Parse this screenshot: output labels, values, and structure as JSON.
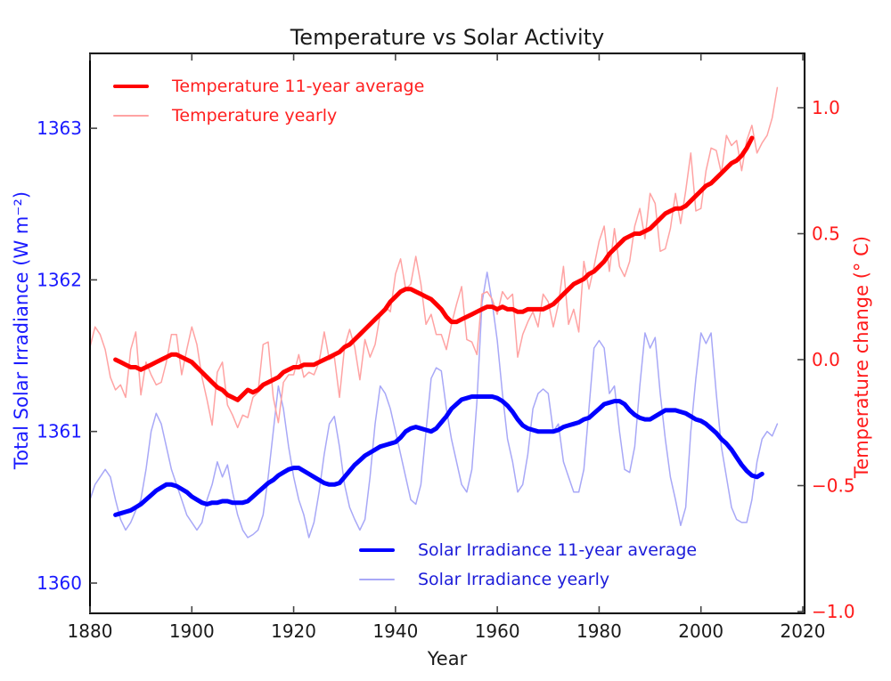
{
  "chart_data": {
    "type": "line",
    "title": "Temperature vs Solar Activity",
    "xlabel": "Year",
    "ylabel_left": "Total Solar Irradiance (W m⁻²)",
    "ylabel_right": "Temperature change (° C)",
    "x_range": [
      1880,
      2020
    ],
    "x_ticks": [
      1880,
      1900,
      1920,
      1940,
      1960,
      1980,
      2000,
      2020
    ],
    "y_axis_left": {
      "range": [
        1359.8,
        1363.5
      ],
      "ticks": [
        1360,
        1361,
        1362,
        1363
      ],
      "tick_labels": [
        "1360",
        "1361",
        "1362",
        "1363"
      ]
    },
    "y_axis_right": {
      "range": [
        -1.01,
        1.22
      ],
      "ticks": [
        1.0,
        0.5,
        0.0,
        -0.5,
        -1.0
      ],
      "tick_labels": [
        "1.0",
        "0.5",
        "0.0",
        "−0.5",
        "−1.0"
      ]
    },
    "grid": false,
    "legend_positions": {
      "temperature": "upper-left-inside",
      "solar": "lower-center-inside"
    },
    "colors": {
      "temp_avg_line": "#ff0000",
      "temp_yearly_line": "#ffa3a3",
      "solar_avg_line": "#0000ff",
      "solar_yearly_line": "#a8a8f7",
      "left_axis_text": "#1a1aff",
      "right_axis_text": "#ff1a1a",
      "frame": "#000000",
      "tick": "#444444",
      "x_tick_text": "#1a1a1a"
    },
    "series": [
      {
        "name": "Temperature 11-year average",
        "axis": "right",
        "color": "#ff0000",
        "line_width": 5,
        "start_year": 1885,
        "values": [
          0.0,
          -0.01,
          -0.02,
          -0.03,
          -0.03,
          -0.04,
          -0.03,
          -0.02,
          -0.01,
          0.0,
          0.01,
          0.02,
          0.02,
          0.01,
          0.0,
          -0.01,
          -0.03,
          -0.05,
          -0.07,
          -0.09,
          -0.11,
          -0.12,
          -0.14,
          -0.15,
          -0.16,
          -0.14,
          -0.12,
          -0.13,
          -0.12,
          -0.1,
          -0.09,
          -0.08,
          -0.07,
          -0.05,
          -0.04,
          -0.03,
          -0.03,
          -0.02,
          -0.02,
          -0.02,
          -0.01,
          0.0,
          0.01,
          0.02,
          0.03,
          0.05,
          0.06,
          0.08,
          0.1,
          0.12,
          0.14,
          0.16,
          0.18,
          0.2,
          0.23,
          0.25,
          0.27,
          0.28,
          0.28,
          0.27,
          0.26,
          0.25,
          0.24,
          0.22,
          0.2,
          0.17,
          0.15,
          0.15,
          0.16,
          0.17,
          0.18,
          0.19,
          0.2,
          0.21,
          0.21,
          0.2,
          0.21,
          0.2,
          0.2,
          0.19,
          0.19,
          0.2,
          0.2,
          0.2,
          0.2,
          0.21,
          0.22,
          0.24,
          0.26,
          0.28,
          0.3,
          0.31,
          0.32,
          0.34,
          0.35,
          0.37,
          0.39,
          0.42,
          0.44,
          0.46,
          0.48,
          0.49,
          0.5,
          0.5,
          0.51,
          0.52,
          0.54,
          0.56,
          0.58,
          0.59,
          0.6,
          0.6,
          0.61,
          0.63,
          0.65,
          0.67,
          0.69,
          0.7,
          0.72,
          0.74,
          0.76,
          0.78,
          0.79,
          0.81,
          0.84,
          0.88
        ]
      },
      {
        "name": "Temperature yearly",
        "axis": "right",
        "color": "#ffa3a3",
        "line_width": 1.5,
        "start_year": 1880,
        "values": [
          0.05,
          0.13,
          0.1,
          0.04,
          -0.07,
          -0.12,
          -0.1,
          -0.15,
          0.04,
          0.11,
          -0.14,
          -0.01,
          -0.06,
          -0.1,
          -0.09,
          -0.01,
          0.1,
          0.1,
          -0.06,
          0.04,
          0.13,
          0.06,
          -0.07,
          -0.16,
          -0.26,
          -0.05,
          -0.01,
          -0.18,
          -0.22,
          -0.27,
          -0.22,
          -0.23,
          -0.15,
          -0.13,
          0.06,
          0.07,
          -0.15,
          -0.25,
          -0.09,
          -0.06,
          -0.06,
          0.02,
          -0.07,
          -0.05,
          -0.06,
          -0.01,
          0.11,
          0.0,
          0.01,
          -0.15,
          0.05,
          0.12,
          0.05,
          -0.08,
          0.08,
          0.01,
          0.06,
          0.18,
          0.21,
          0.19,
          0.34,
          0.4,
          0.28,
          0.3,
          0.41,
          0.3,
          0.14,
          0.18,
          0.1,
          0.1,
          0.04,
          0.14,
          0.22,
          0.29,
          0.08,
          0.07,
          0.02,
          0.26,
          0.27,
          0.24,
          0.18,
          0.27,
          0.24,
          0.26,
          0.01,
          0.1,
          0.15,
          0.19,
          0.13,
          0.26,
          0.23,
          0.13,
          0.22,
          0.37,
          0.14,
          0.2,
          0.11,
          0.39,
          0.28,
          0.37,
          0.47,
          0.53,
          0.35,
          0.52,
          0.37,
          0.33,
          0.39,
          0.53,
          0.6,
          0.48,
          0.66,
          0.62,
          0.43,
          0.44,
          0.52,
          0.66,
          0.54,
          0.67,
          0.82,
          0.59,
          0.6,
          0.75,
          0.84,
          0.83,
          0.74,
          0.89,
          0.85,
          0.87,
          0.75,
          0.87,
          0.93,
          0.82,
          0.86,
          0.89,
          0.96,
          1.08
        ]
      },
      {
        "name": "Solar Irradiance 11-year average",
        "axis": "left",
        "color": "#0000ff",
        "line_width": 5,
        "start_year": 1885,
        "values": [
          1360.45,
          1360.46,
          1360.47,
          1360.48,
          1360.5,
          1360.52,
          1360.55,
          1360.58,
          1360.61,
          1360.63,
          1360.65,
          1360.65,
          1360.64,
          1360.62,
          1360.6,
          1360.57,
          1360.55,
          1360.53,
          1360.52,
          1360.53,
          1360.53,
          1360.54,
          1360.54,
          1360.53,
          1360.53,
          1360.53,
          1360.54,
          1360.57,
          1360.6,
          1360.63,
          1360.66,
          1360.68,
          1360.71,
          1360.73,
          1360.75,
          1360.76,
          1360.76,
          1360.74,
          1360.72,
          1360.7,
          1360.68,
          1360.66,
          1360.65,
          1360.65,
          1360.66,
          1360.7,
          1360.74,
          1360.78,
          1360.81,
          1360.84,
          1360.86,
          1360.88,
          1360.9,
          1360.91,
          1360.92,
          1360.93,
          1360.96,
          1361.0,
          1361.02,
          1361.03,
          1361.02,
          1361.01,
          1361.0,
          1361.02,
          1361.06,
          1361.1,
          1361.15,
          1361.18,
          1361.21,
          1361.22,
          1361.23,
          1361.23,
          1361.23,
          1361.23,
          1361.23,
          1361.22,
          1361.2,
          1361.17,
          1361.13,
          1361.08,
          1361.04,
          1361.02,
          1361.01,
          1361.0,
          1361.0,
          1361.0,
          1361.0,
          1361.01,
          1361.03,
          1361.04,
          1361.05,
          1361.06,
          1361.08,
          1361.09,
          1361.12,
          1361.15,
          1361.18,
          1361.19,
          1361.2,
          1361.2,
          1361.18,
          1361.14,
          1361.11,
          1361.09,
          1361.08,
          1361.08,
          1361.1,
          1361.12,
          1361.14,
          1361.14,
          1361.14,
          1361.13,
          1361.12,
          1361.1,
          1361.08,
          1361.07,
          1361.05,
          1361.02,
          1360.99,
          1360.95,
          1360.92,
          1360.88,
          1360.83,
          1360.78,
          1360.74,
          1360.71,
          1360.7,
          1360.72
        ]
      },
      {
        "name": "Solar Irradiance yearly",
        "axis": "left",
        "color": "#a8a8f7",
        "line_width": 1.5,
        "start_year": 1880,
        "values": [
          1360.55,
          1360.65,
          1360.7,
          1360.75,
          1360.7,
          1360.55,
          1360.42,
          1360.35,
          1360.4,
          1360.48,
          1360.55,
          1360.75,
          1361.0,
          1361.12,
          1361.05,
          1360.9,
          1360.75,
          1360.65,
          1360.55,
          1360.45,
          1360.4,
          1360.35,
          1360.4,
          1360.55,
          1360.65,
          1360.8,
          1360.7,
          1360.78,
          1360.6,
          1360.45,
          1360.35,
          1360.3,
          1360.32,
          1360.35,
          1360.45,
          1360.7,
          1361.0,
          1361.3,
          1361.15,
          1360.9,
          1360.7,
          1360.55,
          1360.45,
          1360.3,
          1360.4,
          1360.6,
          1360.85,
          1361.05,
          1361.1,
          1360.9,
          1360.65,
          1360.5,
          1360.42,
          1360.35,
          1360.42,
          1360.7,
          1361.05,
          1361.3,
          1361.25,
          1361.15,
          1361.0,
          1360.85,
          1360.7,
          1360.55,
          1360.52,
          1360.65,
          1361.0,
          1361.35,
          1361.42,
          1361.4,
          1361.15,
          1360.95,
          1360.8,
          1360.65,
          1360.6,
          1360.75,
          1361.2,
          1361.85,
          1362.05,
          1361.85,
          1361.6,
          1361.25,
          1360.95,
          1360.8,
          1360.6,
          1360.65,
          1360.85,
          1361.15,
          1361.25,
          1361.28,
          1361.25,
          1361.0,
          1361.05,
          1360.8,
          1360.7,
          1360.6,
          1360.6,
          1360.75,
          1361.15,
          1361.55,
          1361.6,
          1361.55,
          1361.25,
          1361.3,
          1361.0,
          1360.75,
          1360.73,
          1360.9,
          1361.3,
          1361.65,
          1361.55,
          1361.62,
          1361.25,
          1360.95,
          1360.7,
          1360.55,
          1360.38,
          1360.5,
          1361.0,
          1361.35,
          1361.65,
          1361.58,
          1361.65,
          1361.25,
          1360.9,
          1360.7,
          1360.5,
          1360.42,
          1360.4,
          1360.4,
          1360.55,
          1360.8,
          1360.95,
          1361.0,
          1360.97,
          1361.05
        ]
      }
    ]
  }
}
